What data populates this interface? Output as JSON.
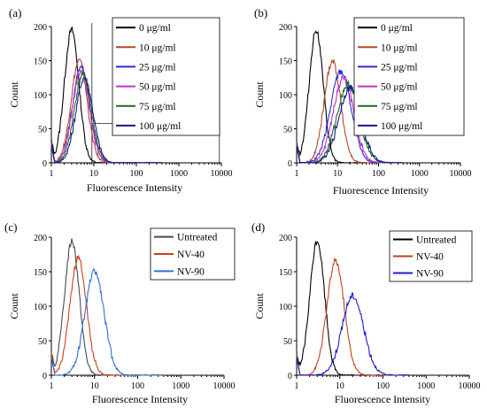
{
  "chart_data": [
    {
      "panel_label": "(a)",
      "type": "line",
      "xscale": "log",
      "xlim": [
        1,
        10000
      ],
      "ylim": [
        0,
        200
      ],
      "xticks": [
        "1",
        "10",
        "100",
        "1000",
        "10000"
      ],
      "yticks": [
        "0",
        "50",
        "100",
        "150",
        "200"
      ],
      "xlabel": "Fluorescence Intensity",
      "ylabel": "Count",
      "legend": "top-right",
      "gate": {
        "x_from": 9,
        "x_to": 9000,
        "y_line": 58
      },
      "series": [
        {
          "name": "0 μg/ml",
          "color": "#000000",
          "peak_x": 3.0,
          "peak_y": 195,
          "width": 0.17
        },
        {
          "name": "10 μg/ml",
          "color": "#b5452a",
          "peak_x": 4.5,
          "peak_y": 150,
          "width": 0.19
        },
        {
          "name": "25 μg/ml",
          "color": "#2b2bd6",
          "peak_x": 5.0,
          "peak_y": 140,
          "width": 0.2
        },
        {
          "name": "50 μg/ml",
          "color": "#c030c8",
          "peak_x": 5.0,
          "peak_y": 135,
          "width": 0.2
        },
        {
          "name": "75 μg/ml",
          "color": "#1c6e1c",
          "peak_x": 5.5,
          "peak_y": 130,
          "width": 0.2
        },
        {
          "name": "100 μg/ml",
          "color": "#1a1a8c",
          "peak_x": 6.0,
          "peak_y": 125,
          "width": 0.2
        }
      ]
    },
    {
      "panel_label": "(b)",
      "type": "line",
      "xscale": "log",
      "xlim": [
        1,
        10000
      ],
      "ylim": [
        0,
        200
      ],
      "xticks": [
        "1",
        "10",
        "100",
        "1000",
        "10000"
      ],
      "yticks": [
        "0",
        "50",
        "100",
        "150",
        "200"
      ],
      "xlabel": "Fluorescence Intensity",
      "ylabel": "Count",
      "legend": "top-right",
      "series": [
        {
          "name": "0 μg/ml",
          "color": "#000000",
          "peak_x": 3.0,
          "peak_y": 195,
          "width": 0.17
        },
        {
          "name": "10 μg/ml",
          "color": "#b5452a",
          "peak_x": 7.5,
          "peak_y": 150,
          "width": 0.2
        },
        {
          "name": "25 μg/ml",
          "color": "#2b2bd6",
          "peak_x": 12,
          "peak_y": 135,
          "width": 0.25
        },
        {
          "name": "50 μg/ml",
          "color": "#c030c8",
          "peak_x": 14,
          "peak_y": 125,
          "width": 0.25
        },
        {
          "name": "75 μg/ml",
          "color": "#1c6e1c",
          "peak_x": 18,
          "peak_y": 115,
          "width": 0.27
        },
        {
          "name": "100 μg/ml",
          "color": "#1a1a8c",
          "peak_x": 20,
          "peak_y": 110,
          "width": 0.27
        }
      ]
    },
    {
      "panel_label": "(c)",
      "type": "line",
      "xscale": "log",
      "xlim": [
        1,
        10000
      ],
      "ylim": [
        0,
        200
      ],
      "xticks": [
        "1",
        "10",
        "100",
        "1000",
        "10000"
      ],
      "yticks": [
        "0",
        "50",
        "100",
        "150",
        "200"
      ],
      "xlabel": "Fluorescence Intensity",
      "ylabel": "Count",
      "legend": "top-right",
      "series": [
        {
          "name": "Untreated",
          "color": "#4a4a4a",
          "peak_x": 3.0,
          "peak_y": 195,
          "width": 0.17
        },
        {
          "name": "NV-40",
          "color": "#c8401e",
          "peak_x": 4.2,
          "peak_y": 170,
          "width": 0.19
        },
        {
          "name": "NV-90",
          "color": "#2f6fd8",
          "peak_x": 10,
          "peak_y": 150,
          "width": 0.22
        }
      ]
    },
    {
      "panel_label": "(d)",
      "type": "line",
      "xscale": "log",
      "xlim": [
        1,
        10000
      ],
      "ylim": [
        0,
        200
      ],
      "xticks": [
        "1",
        "10",
        "100",
        "1000",
        "10000"
      ],
      "yticks": [
        "0",
        "50",
        "100",
        "150",
        "200"
      ],
      "xlabel": "Fluorescence Intensity",
      "ylabel": "Count",
      "legend": "top-right",
      "series": [
        {
          "name": "Untreated",
          "color": "#000000",
          "peak_x": 3.0,
          "peak_y": 195,
          "width": 0.17
        },
        {
          "name": "NV-40",
          "color": "#c0401e",
          "peak_x": 8.0,
          "peak_y": 165,
          "width": 0.2
        },
        {
          "name": "NV-90",
          "color": "#1a1ad0",
          "peak_x": 20,
          "peak_y": 115,
          "width": 0.25
        }
      ]
    }
  ]
}
